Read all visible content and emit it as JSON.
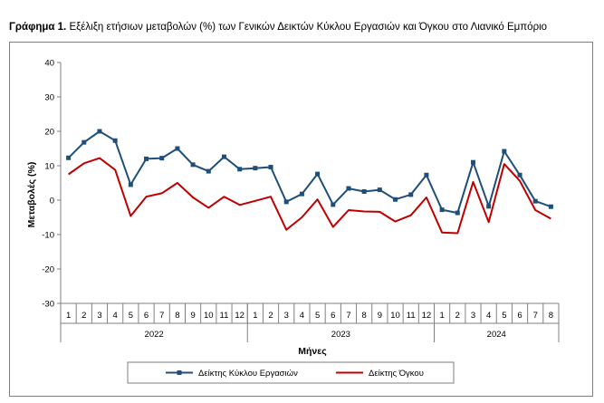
{
  "chart_data": {
    "type": "line",
    "title_prefix": "Γράφημα 1.",
    "title": "Εξέλιξη ετήσιων μεταβολών (%) των Γενικών Δεικτών Κύκλου Εργασιών και Όγκου στο Λιανικό Εμπόριο",
    "xlabel": "Μήνες",
    "ylabel": "Μεταβολές (%)",
    "ylim": [
      -30,
      40
    ],
    "yticks": [
      -30,
      -20,
      -10,
      0,
      10,
      20,
      30,
      40
    ],
    "categories": [
      "1",
      "2",
      "3",
      "4",
      "5",
      "6",
      "7",
      "8",
      "9",
      "10",
      "11",
      "12",
      "1",
      "2",
      "3",
      "4",
      "5",
      "6",
      "7",
      "8",
      "9",
      "10",
      "11",
      "12",
      "1",
      "2",
      "3",
      "4",
      "5",
      "6",
      "7",
      "8"
    ],
    "year_groups": [
      {
        "label": "2022",
        "count": 12
      },
      {
        "label": "2023",
        "count": 12
      },
      {
        "label": "2024",
        "count": 8
      }
    ],
    "grid": false,
    "legend_position": "bottom",
    "series": [
      {
        "name": "Δείκτης Κύκλου Εργασιών",
        "color": "#1f4e79",
        "marker": "square",
        "values": [
          12.3,
          16.8,
          20.0,
          17.3,
          4.5,
          12.0,
          12.2,
          15.0,
          10.3,
          8.4,
          12.6,
          9.0,
          9.3,
          9.6,
          -0.5,
          1.8,
          7.6,
          -1.3,
          3.4,
          2.5,
          3.0,
          0.2,
          1.6,
          7.3,
          -2.8,
          -3.7,
          11.0,
          -1.8,
          14.2,
          7.3,
          -0.3,
          -1.9
        ]
      },
      {
        "name": "Δείκτης Όγκου",
        "color": "#c00000",
        "marker": "none",
        "values": [
          7.5,
          10.7,
          12.2,
          8.8,
          -4.6,
          1.0,
          2.0,
          5.0,
          0.8,
          -2.2,
          1.0,
          -1.4,
          -0.2,
          1.0,
          -8.6,
          -5.0,
          0.2,
          -7.8,
          -2.9,
          -3.3,
          -3.4,
          -6.2,
          -4.4,
          0.8,
          -9.4,
          -9.6,
          5.3,
          -6.4,
          10.5,
          5.6,
          -2.9,
          -5.4
        ]
      }
    ]
  }
}
